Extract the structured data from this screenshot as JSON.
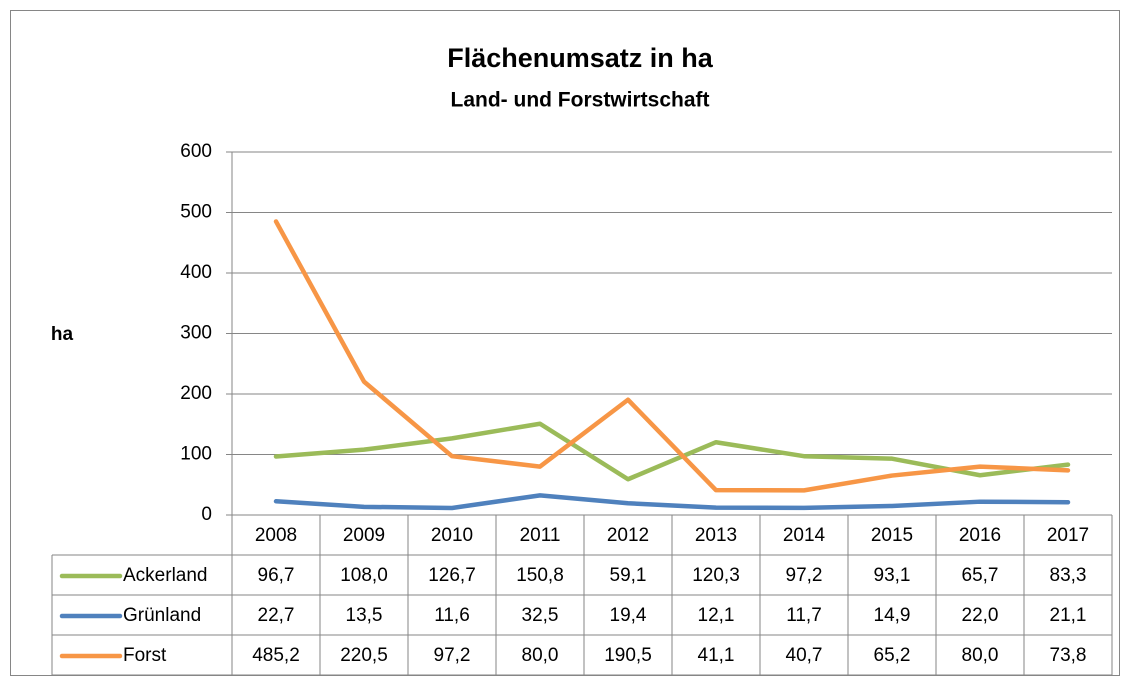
{
  "chart_data": {
    "type": "line",
    "title": "Flächenumsatz in ha",
    "subtitle": "Land- und Forstwirtschaft",
    "y_label": "ha",
    "categories": [
      "2008",
      "2009",
      "2010",
      "2011",
      "2012",
      "2013",
      "2014",
      "2015",
      "2016",
      "2017"
    ],
    "series": [
      {
        "name": "Ackerland",
        "color": "#9bbb59",
        "values": [
          96.7,
          108.0,
          126.7,
          150.8,
          59.1,
          120.3,
          97.2,
          93.1,
          65.7,
          83.3
        ],
        "value_labels": [
          "96,7",
          "108,0",
          "126,7",
          "150,8",
          "59,1",
          "120,3",
          "97,2",
          "93,1",
          "65,7",
          "83,3"
        ]
      },
      {
        "name": "Grünland",
        "color": "#4f81bd",
        "values": [
          22.7,
          13.5,
          11.6,
          32.5,
          19.4,
          12.1,
          11.7,
          14.9,
          22.0,
          21.1
        ],
        "value_labels": [
          "22,7",
          "13,5",
          "11,6",
          "32,5",
          "19,4",
          "12,1",
          "11,7",
          "14,9",
          "22,0",
          "21,1"
        ]
      },
      {
        "name": "Forst",
        "color": "#f79646",
        "values": [
          485.2,
          220.5,
          97.2,
          80.0,
          190.5,
          41.1,
          40.7,
          65.2,
          80.0,
          73.8
        ],
        "value_labels": [
          "485,2",
          "220,5",
          "97,2",
          "80,0",
          "190,5",
          "41,1",
          "40,7",
          "65,2",
          "80,0",
          "73,8"
        ]
      }
    ],
    "ylim": [
      0,
      600
    ],
    "yticks": [
      0,
      100,
      200,
      300,
      400,
      500,
      600
    ],
    "grid": true
  }
}
